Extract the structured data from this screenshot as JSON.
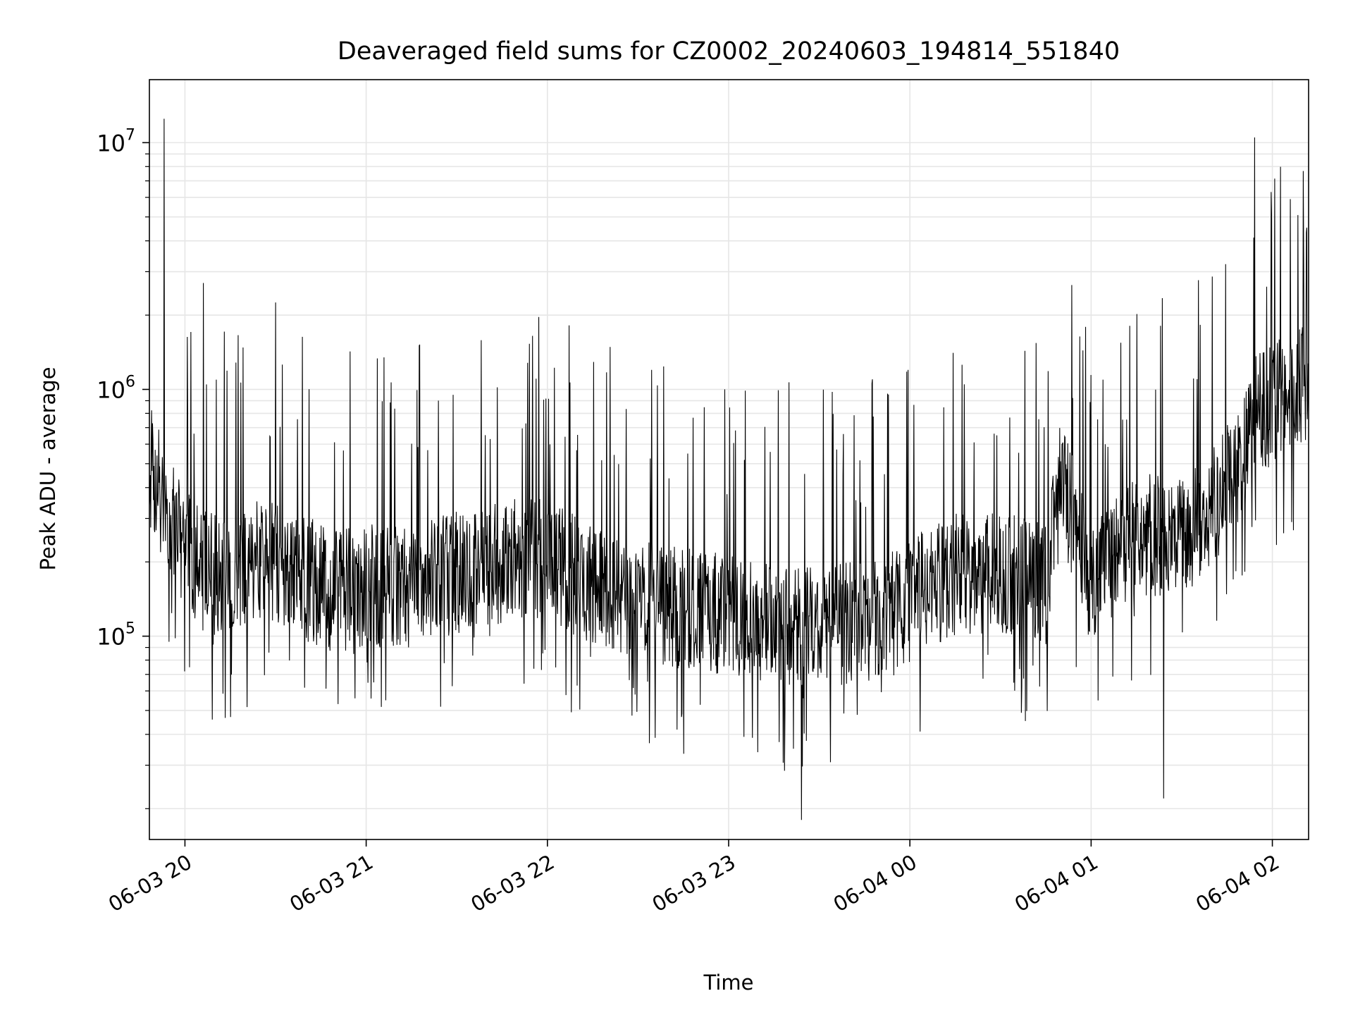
{
  "chart_data": {
    "type": "line",
    "title": "Deaveraged field sums for CZ0002_20240603_194814_551840",
    "xlabel": "Time",
    "ylabel": "Peak ADU - average",
    "yscale": "log",
    "ylim": [
      15000,
      18000000
    ],
    "xlim": [
      "2024-06-03 19:48:14",
      "2024-06-04 02:12:00"
    ],
    "x_ticks": [
      "06-03 20",
      "06-03 21",
      "06-03 22",
      "06-03 23",
      "06-04 00",
      "06-04 01",
      "06-04 02"
    ],
    "y_ticks": [
      {
        "base": "10",
        "exp": "5",
        "value": 100000
      },
      {
        "base": "10",
        "exp": "6",
        "value": 1000000
      },
      {
        "base": "10",
        "exp": "7",
        "value": 10000000
      }
    ],
    "grid": true,
    "line_color": "#000000",
    "series": [
      {
        "x": [
          "2024-06-03 19:48",
          "2024-06-03 19:54",
          "2024-06-03 20:00",
          "2024-06-03 20:12",
          "2024-06-03 20:24",
          "2024-06-03 20:36",
          "2024-06-03 20:48",
          "2024-06-03 21:00",
          "2024-06-03 21:15",
          "2024-06-03 21:30",
          "2024-06-03 21:45",
          "2024-06-03 22:00",
          "2024-06-03 22:15",
          "2024-06-03 22:30",
          "2024-06-03 22:45",
          "2024-06-03 23:00",
          "2024-06-03 23:15",
          "2024-06-03 23:30",
          "2024-06-03 23:45",
          "2024-06-04 00:00",
          "2024-06-04 00:15",
          "2024-06-04 00:30",
          "2024-06-04 00:45",
          "2024-06-04 00:50",
          "2024-06-04 01:00",
          "2024-06-04 01:15",
          "2024-06-04 01:30",
          "2024-06-04 01:45",
          "2024-06-04 01:55",
          "2024-06-04 02:12"
        ],
        "values": [
          500000,
          320000,
          220000,
          170000,
          200000,
          190000,
          150000,
          160000,
          160000,
          180000,
          200000,
          210000,
          160000,
          140000,
          130000,
          120000,
          110000,
          110000,
          115000,
          140000,
          180000,
          180000,
          160000,
          450000,
          160000,
          260000,
          250000,
          400000,
          800000,
          1050000
        ]
      }
    ],
    "spikes": [
      {
        "x": "2024-06-03 19:53",
        "value": 12500000
      },
      {
        "x": "2024-06-03 20:06",
        "value": 2700000
      },
      {
        "x": "2024-06-03 20:30",
        "value": 2250000
      },
      {
        "x": "2024-06-03 23:24",
        "value": 18000
      },
      {
        "x": "2024-06-04 01:24",
        "value": 22000
      },
      {
        "x": "2024-06-04 01:54",
        "value": 10500000
      }
    ]
  }
}
